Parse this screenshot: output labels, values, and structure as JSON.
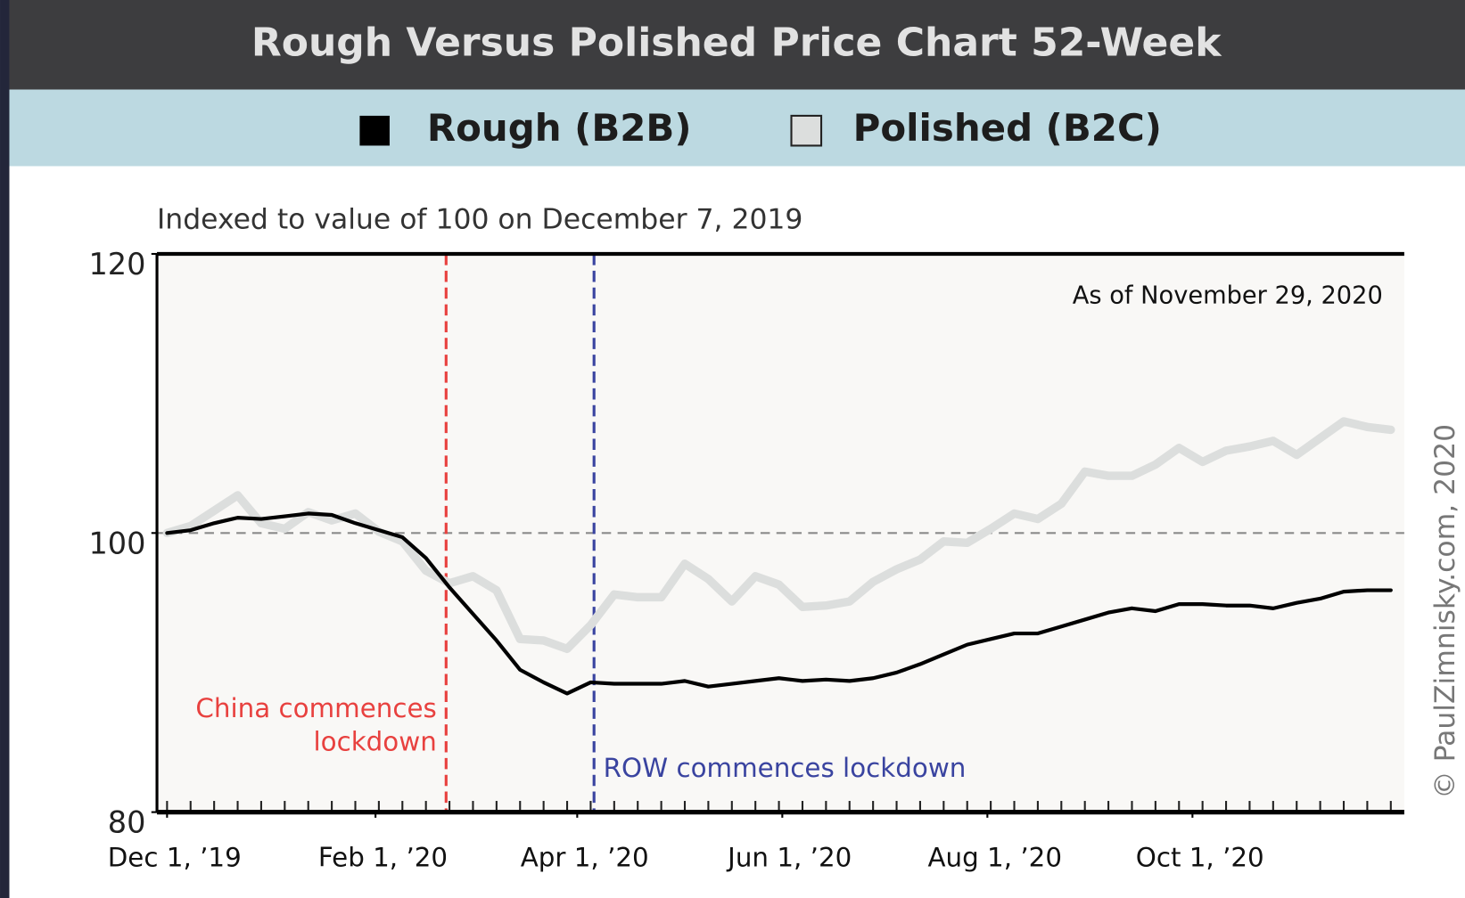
{
  "chart_data": {
    "type": "line",
    "title": "Rough Versus Polished Price Chart 52-Week",
    "subtitle": "Indexed to value of 100 on December 7, 2019",
    "note": "As of November 29, 2020",
    "credit": "© PaulZimnisky.com, 2020",
    "x": [
      "2019-12-01",
      "2019-12-08",
      "2019-12-15",
      "2019-12-22",
      "2019-12-29",
      "2020-01-05",
      "2020-01-12",
      "2020-01-19",
      "2020-01-26",
      "2020-02-02",
      "2020-02-09",
      "2020-02-16",
      "2020-02-23",
      "2020-03-01",
      "2020-03-08",
      "2020-03-15",
      "2020-03-22",
      "2020-03-29",
      "2020-04-05",
      "2020-04-12",
      "2020-04-19",
      "2020-04-26",
      "2020-05-03",
      "2020-05-10",
      "2020-05-17",
      "2020-05-24",
      "2020-05-31",
      "2020-06-07",
      "2020-06-14",
      "2020-06-21",
      "2020-06-28",
      "2020-07-05",
      "2020-07-12",
      "2020-07-19",
      "2020-07-26",
      "2020-08-02",
      "2020-08-09",
      "2020-08-16",
      "2020-08-23",
      "2020-08-30",
      "2020-09-06",
      "2020-09-13",
      "2020-09-20",
      "2020-09-27",
      "2020-10-04",
      "2020-10-11",
      "2020-10-18",
      "2020-10-25",
      "2020-11-01",
      "2020-11-08",
      "2020-11-15",
      "2020-11-22",
      "2020-11-29"
    ],
    "series": [
      {
        "name": "Rough (B2B)",
        "color": "#000000",
        "values": [
          100.0,
          100.2,
          100.7,
          101.1,
          101.0,
          101.2,
          101.4,
          101.3,
          100.7,
          100.2,
          99.7,
          98.2,
          96.1,
          94.2,
          92.3,
          90.2,
          89.3,
          88.5,
          89.3,
          89.2,
          89.2,
          89.2,
          89.4,
          89.0,
          89.2,
          89.4,
          89.6,
          89.4,
          89.5,
          89.4,
          89.6,
          90.0,
          90.6,
          91.3,
          92.0,
          92.4,
          92.8,
          92.8,
          93.3,
          93.8,
          94.3,
          94.6,
          94.4,
          94.9,
          94.9,
          94.8,
          94.8,
          94.6,
          95.0,
          95.3,
          95.8,
          95.9,
          95.9
        ]
      },
      {
        "name": "Polished (B2C)",
        "color": "#dcdedd",
        "values": [
          100.0,
          100.5,
          101.6,
          102.7,
          100.7,
          100.3,
          101.5,
          100.9,
          101.4,
          100.1,
          99.4,
          97.3,
          96.4,
          96.9,
          95.9,
          92.4,
          92.3,
          91.7,
          93.4,
          95.6,
          95.4,
          95.4,
          97.8,
          96.7,
          95.1,
          96.9,
          96.3,
          94.7,
          94.8,
          95.1,
          96.5,
          97.4,
          98.1,
          99.4,
          99.3,
          100.3,
          101.4,
          101.0,
          102.1,
          104.4,
          104.1,
          104.1,
          104.9,
          106.1,
          105.1,
          105.9,
          106.2,
          106.6,
          105.6,
          106.8,
          108.0,
          107.6,
          107.4
        ]
      }
    ],
    "xlim": [
      "2019-11-28",
      "2020-12-03"
    ],
    "xticks": [
      {
        "value": "2019-12-01",
        "label": "Dec 1, ’19"
      },
      {
        "value": "2020-02-01",
        "label": "Feb 1, ’20"
      },
      {
        "value": "2020-04-01",
        "label": "Apr 1, ’20"
      },
      {
        "value": "2020-06-01",
        "label": "Jun 1, ’20"
      },
      {
        "value": "2020-08-01",
        "label": "Aug 1, ’20"
      },
      {
        "value": "2020-10-01",
        "label": "Oct 1, ’20"
      }
    ],
    "ylim": [
      80,
      120
    ],
    "yticks": [
      80,
      100,
      120
    ],
    "reference_line": 100,
    "annotations": [
      {
        "lines": [
          "China commences",
          "lockdown"
        ],
        "x": "2020-02-22",
        "color": "#e8413f"
      },
      {
        "lines": [
          "ROW commences lockdown"
        ],
        "x": "2020-04-06",
        "color": "#3a44a0"
      }
    ]
  }
}
